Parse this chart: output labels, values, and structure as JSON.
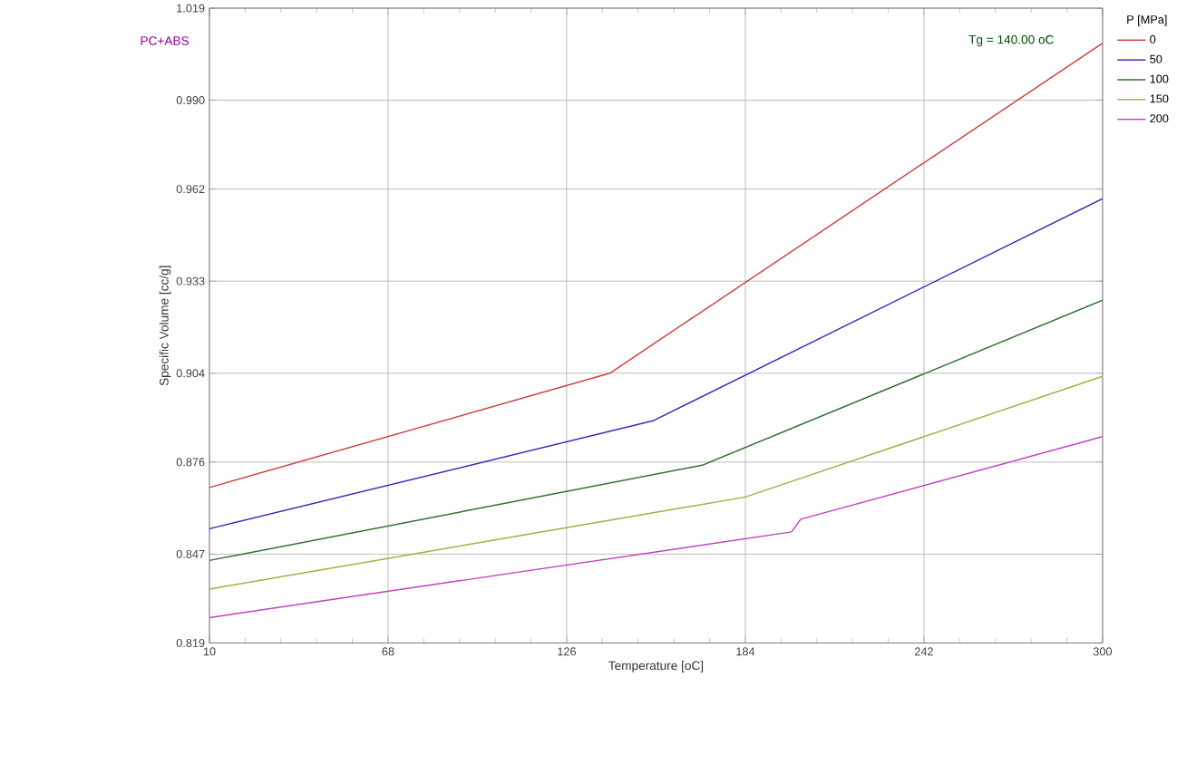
{
  "chart_data": {
    "type": "line",
    "title": "PC+ABS",
    "annotations": [
      "Tg = 140.00 oC"
    ],
    "xlabel": "Temperature [oC]",
    "ylabel": "Specific Volume [cc/g]",
    "legend_title": "P [MPa]",
    "xlim": [
      10,
      300
    ],
    "ylim": [
      0.819,
      1.019
    ],
    "xticks": [
      10,
      68,
      126,
      184,
      242,
      300
    ],
    "yticks": [
      0.819,
      0.847,
      0.876,
      0.904,
      0.933,
      0.962,
      {
        "value": 0.99,
        "label": "0.990"
      },
      1.019
    ],
    "grid": true,
    "legend": "top right",
    "series": [
      {
        "name": "0",
        "color": "#d04040",
        "x": [
          10,
          140,
          300
        ],
        "values": [
          0.868,
          0.904,
          1.008
        ]
      },
      {
        "name": "50",
        "color": "#3030c0",
        "x": [
          10,
          154,
          300
        ],
        "values": [
          0.855,
          0.889,
          0.959
        ]
      },
      {
        "name": "100",
        "color": "#307030",
        "x": [
          10,
          170,
          300
        ],
        "values": [
          0.845,
          0.875,
          0.927
        ]
      },
      {
        "name": "150",
        "color": "#a0b040",
        "x": [
          10,
          184,
          300
        ],
        "values": [
          0.836,
          0.865,
          0.903
        ]
      },
      {
        "name": "200",
        "color": "#c040c0",
        "x": [
          10,
          199,
          202,
          300
        ],
        "values": [
          0.827,
          0.854,
          0.858,
          0.884
        ]
      }
    ]
  }
}
